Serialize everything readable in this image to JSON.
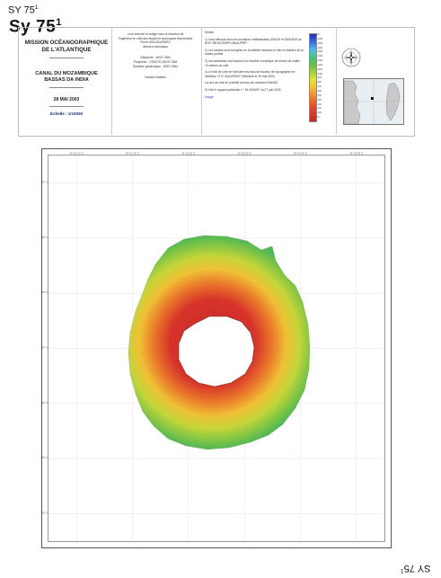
{
  "corner_id": {
    "prefix": "SY 75",
    "sup": "1"
  },
  "big_title": {
    "prefix": "Sy 75",
    "sup": "1"
  },
  "bottom_id": {
    "prefix": "SY 75",
    "sup": "1"
  },
  "title_block": {
    "mission": [
      "MISSION OCÉANOGRAPHIQUE",
      "DE L'ATLANTIQUE"
    ],
    "region": [
      "CANAL DU MOZAMBIQUE",
      "BASSAS DA INDIA"
    ],
    "date": "28 MAI 2003",
    "scale": "Échelle : 1/10000"
  },
  "credits": {
    "lines_a": [
      "Levé exécuté et rédigé sous la direction de",
      "l'ingénieur en chef des études et techniques d'armement",
      "Pierre MOUSCARDÈS",
      "directeur technique"
    ],
    "lines_b": [
      "Ellipsoïde : WGS 1984",
      "Projection : UTM37S (WGS 1984",
      "Système géodésique : WGS 1984"
    ],
    "footer": "Sondes établies"
  },
  "notes": {
    "heading": "Notes",
    "items": [
      "1) Levé effectué avec les sondeurs multifaisceaux EM120 et EM1002S du BHO \"BEAUTEMPS-BEAUPRÉ\".",
      "2) Les sondes sont corrigées de la célérité mesurée in situ et réduites de la marée prédite.",
      "3) Les isobathes sont issues d'un modèle numérique de terrain de maille 10 mètres de côté.",
      "4) Le trait de côte en trait plein est issu de travaux de topographie en vedettes \"OTC AQUARIUS\" effectués le 26 mai 2003.",
      "La nuit de côte en pointillé est issu de mesures RADAR.",
      "5) Voir le rapport particulier n° 44 MOAHF du 27 juin 2003."
    ],
    "link": "Usage"
  },
  "colorbar": {
    "ticks": [
      "0m",
      "-2000",
      "-1800",
      "-1600",
      "-1500",
      "-1400",
      "-1300",
      "-1200",
      "-1100",
      "-1000",
      "-900",
      "-800",
      "-700",
      "-600",
      "-500",
      "-400",
      "-300",
      "-200",
      "-100",
      "0m"
    ],
    "colors": {
      "deep": "#1b2fb0",
      "mid": "#6cc046",
      "shallow": "#c9252a"
    }
  },
  "map": {
    "accent": "#cc2a2a",
    "top_ticks": [
      "40° 00' 00\" E",
      "40° 01' 00\" E",
      "40° 02' 00\" E",
      "40° 03' 00\" E",
      "40° 04' 00\" E",
      "40° 05' 00\" E"
    ],
    "left_ticks": [
      "21° 23' 00\" S",
      "21° 24' 00\" S",
      "21° 25' 00\" S",
      "21° 26' 00\" S",
      "21° 27' 00\" S",
      "21° 28' 00\" S",
      "21° 29' 00\" S"
    ]
  },
  "icons": {
    "compass": "compass-rose-icon",
    "inset": "locator-map-icon"
  }
}
